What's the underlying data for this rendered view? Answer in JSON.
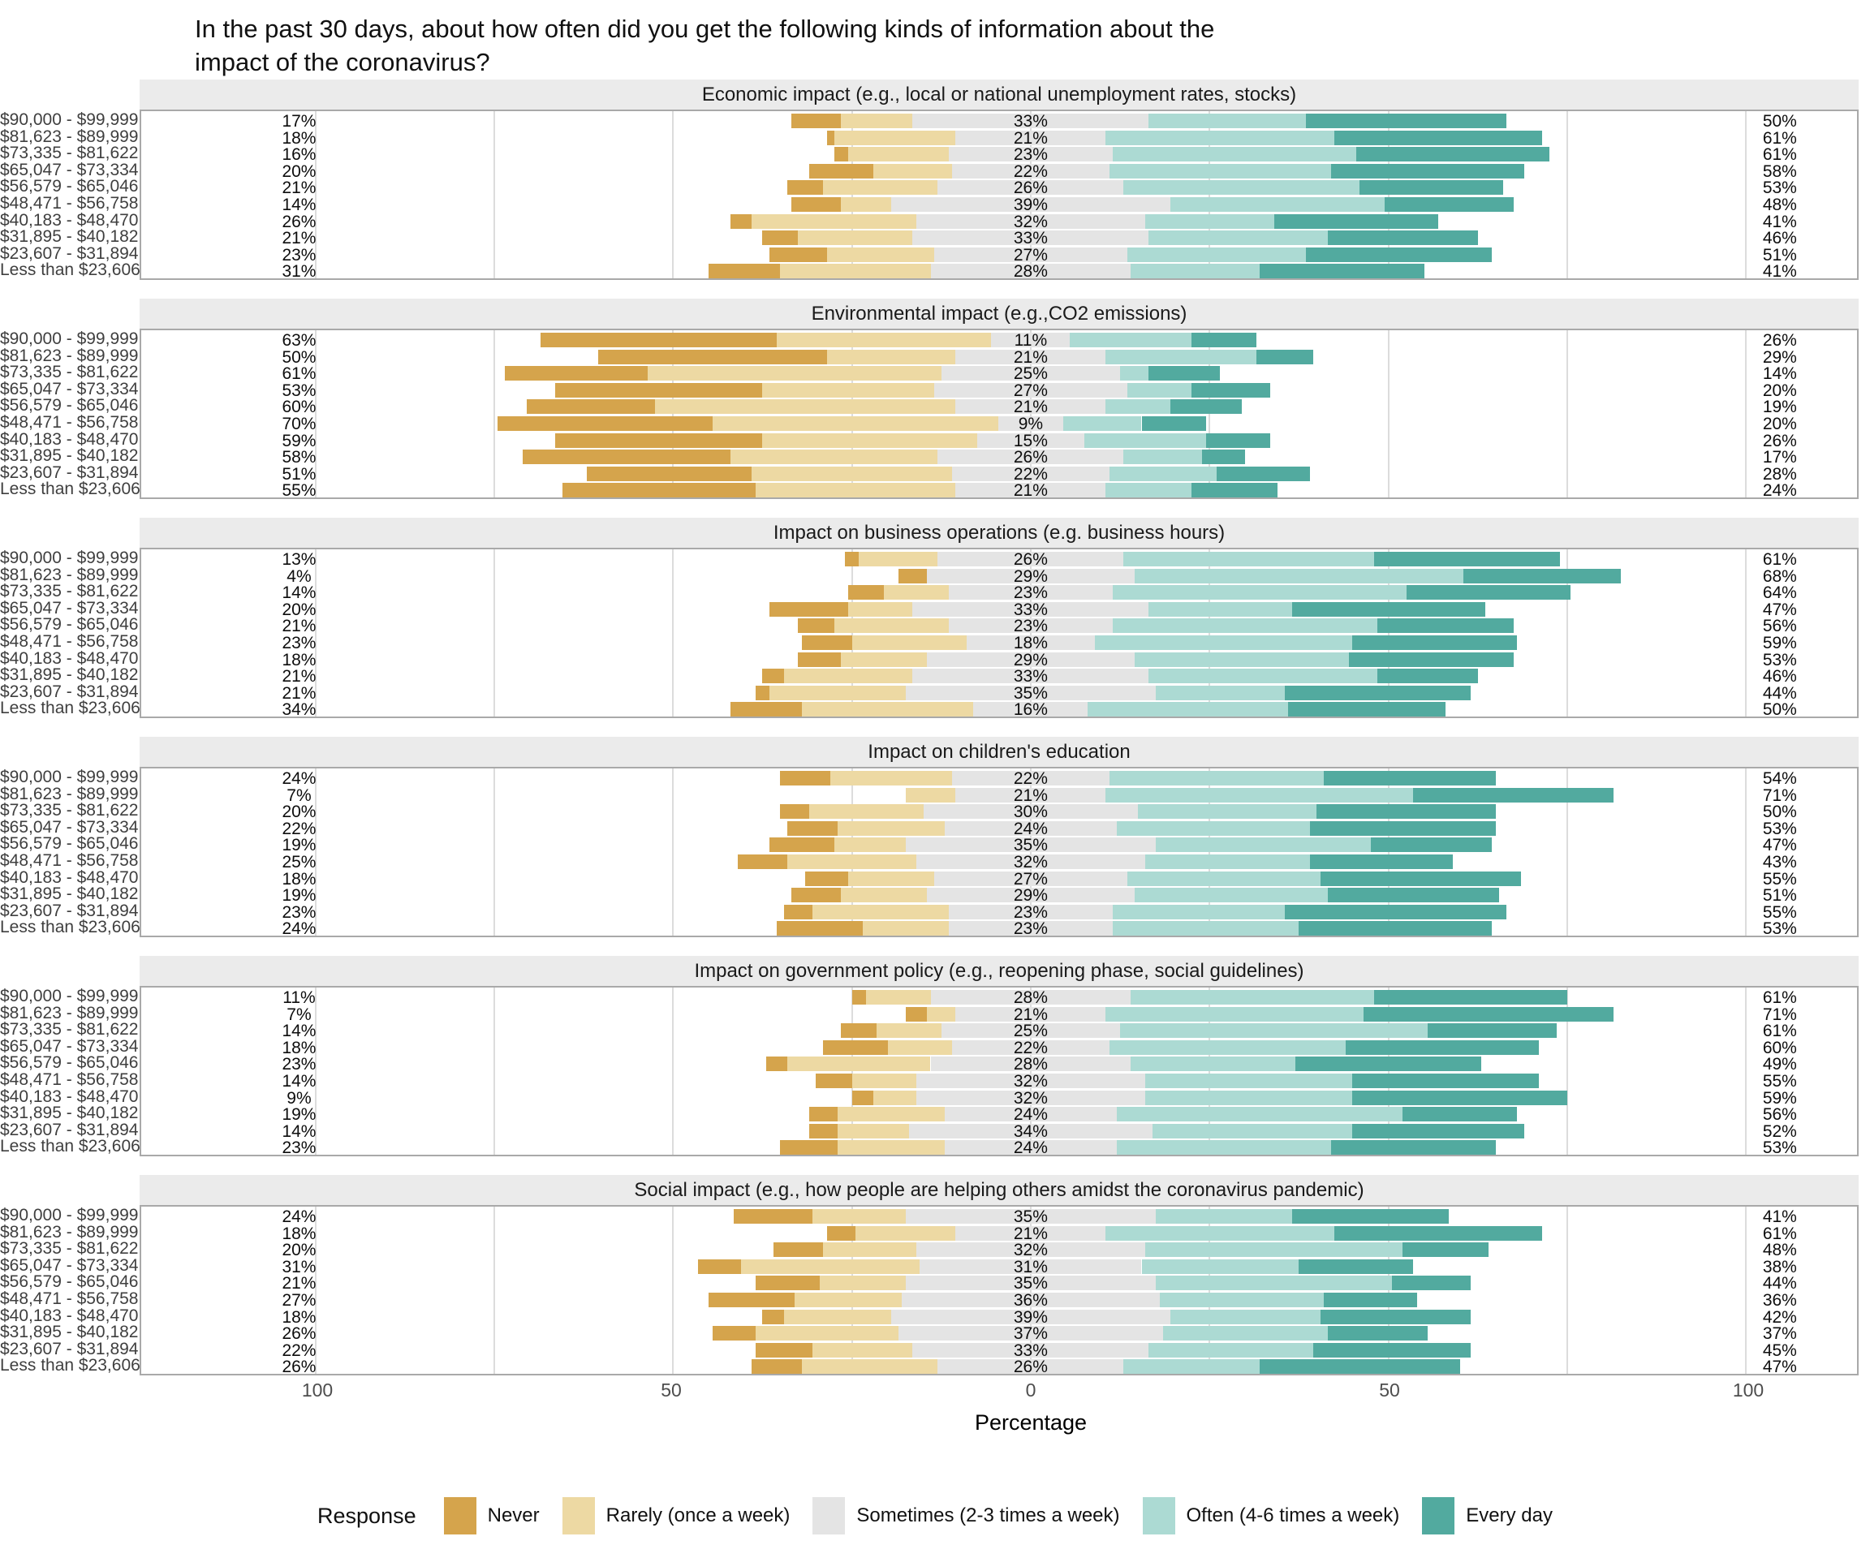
{
  "title_line1": "In the past 30 days, about how often did you get the following kinds of information about the",
  "title_line2": "impact of the coronavirus?",
  "x_axis": {
    "label": "Percentage",
    "ticks": [
      "100",
      "50",
      "0",
      "50",
      "100"
    ]
  },
  "legend": {
    "title": "Response"
  },
  "chart_data": {
    "type": "diverging-stacked-bar",
    "orientation": "horizontal",
    "x_unit": "percent of respondents",
    "x_tick_values": [
      -100,
      -50,
      0,
      50,
      100
    ],
    "grid": "on",
    "legend_position": "bottom",
    "response_levels": [
      "Never",
      "Rarely (once a week)",
      "Sometimes (2-3 times a week)",
      "Often (4-6 times a week)",
      "Every day"
    ],
    "level_keys": [
      "never",
      "rarely",
      "sometimes",
      "often",
      "every_day"
    ],
    "level_colors": {
      "never": "#D5A44C",
      "rarely": "#EDD9A3",
      "sometimes": "#E4E4E4",
      "often": "#ACDAD3",
      "every_day": "#52AA9F"
    },
    "center_rule": "Sometimes category is centered on 0; Never+Rarely extend left, Often+Every day extend right",
    "label_semantics": {
      "left": "Never + Rarely %",
      "center": "Sometimes %",
      "right": "Often + Every day %"
    },
    "categories": [
      "$90,000 - $99,999",
      "$81,623 - $89,999",
      "$73,335 - $81,622",
      "$65,047 - $73,334",
      "$56,579 - $65,046",
      "$48,471 - $56,758",
      "$40,183 - $48,470",
      "$31,895 - $40,182",
      "$23,607 - $31,894",
      "Less than $23,606"
    ],
    "row_value_order": [
      "never",
      "rarely",
      "sometimes",
      "often",
      "every_day"
    ],
    "panels": [
      {
        "title": "Economic impact (e.g., local or national unemployment rates, stocks)",
        "rows": [
          {
            "values": [
              7,
              10,
              33,
              22,
              28
            ],
            "labels": {
              "left": "17%",
              "center": "33%",
              "right": "50%"
            }
          },
          {
            "values": [
              1,
              17,
              21,
              32,
              29
            ],
            "labels": {
              "left": "18%",
              "center": "21%",
              "right": "61%"
            }
          },
          {
            "values": [
              2,
              14,
              23,
              34,
              27
            ],
            "labels": {
              "left": "16%",
              "center": "23%",
              "right": "61%"
            }
          },
          {
            "values": [
              9,
              11,
              22,
              31,
              27
            ],
            "labels": {
              "left": "20%",
              "center": "22%",
              "right": "58%"
            }
          },
          {
            "values": [
              5,
              16,
              26,
              33,
              20
            ],
            "labels": {
              "left": "21%",
              "center": "26%",
              "right": "53%"
            }
          },
          {
            "values": [
              7,
              7,
              39,
              30,
              18
            ],
            "labels": {
              "left": "14%",
              "center": "39%",
              "right": "48%"
            }
          },
          {
            "values": [
              3,
              23,
              32,
              18,
              23
            ],
            "labels": {
              "left": "26%",
              "center": "32%",
              "right": "41%"
            }
          },
          {
            "values": [
              5,
              16,
              33,
              25,
              21
            ],
            "labels": {
              "left": "21%",
              "center": "33%",
              "right": "46%"
            }
          },
          {
            "values": [
              8,
              15,
              27,
              25,
              26
            ],
            "labels": {
              "left": "23%",
              "center": "27%",
              "right": "51%"
            }
          },
          {
            "values": [
              10,
              21,
              28,
              18,
              23
            ],
            "labels": {
              "left": "31%",
              "center": "28%",
              "right": "41%"
            }
          }
        ]
      },
      {
        "title": "Environmental impact (e.g.,CO2 emissions)",
        "rows": [
          {
            "values": [
              33,
              30,
              11,
              17,
              9
            ],
            "labels": {
              "left": "63%",
              "center": "11%",
              "right": "26%"
            }
          },
          {
            "values": [
              32,
              18,
              21,
              21,
              8
            ],
            "labels": {
              "left": "50%",
              "center": "21%",
              "right": "29%"
            }
          },
          {
            "values": [
              20,
              41,
              25,
              4,
              10
            ],
            "labels": {
              "left": "61%",
              "center": "25%",
              "right": "14%"
            }
          },
          {
            "values": [
              29,
              24,
              27,
              9,
              11
            ],
            "labels": {
              "left": "53%",
              "center": "27%",
              "right": "20%"
            }
          },
          {
            "values": [
              18,
              42,
              21,
              9,
              10
            ],
            "labels": {
              "left": "60%",
              "center": "21%",
              "right": "19%"
            }
          },
          {
            "values": [
              30,
              40,
              9,
              11,
              9
            ],
            "labels": {
              "left": "70%",
              "center": "9%",
              "right": "20%"
            }
          },
          {
            "values": [
              29,
              30,
              15,
              17,
              9
            ],
            "labels": {
              "left": "59%",
              "center": "15%",
              "right": "26%"
            }
          },
          {
            "values": [
              29,
              29,
              26,
              11,
              6
            ],
            "labels": {
              "left": "58%",
              "center": "26%",
              "right": "17%"
            }
          },
          {
            "values": [
              23,
              28,
              22,
              15,
              13
            ],
            "labels": {
              "left": "51%",
              "center": "22%",
              "right": "28%"
            }
          },
          {
            "values": [
              27,
              28,
              21,
              12,
              12
            ],
            "labels": {
              "left": "55%",
              "center": "21%",
              "right": "24%"
            }
          }
        ]
      },
      {
        "title": "Impact on business operations (e.g. business hours)",
        "rows": [
          {
            "values": [
              2,
              11,
              26,
              35,
              26
            ],
            "labels": {
              "left": "13%",
              "center": "26%",
              "right": "61%"
            }
          },
          {
            "values": [
              4,
              0,
              29,
              46,
              22
            ],
            "labels": {
              "left": "4%",
              "center": "29%",
              "right": "68%"
            }
          },
          {
            "values": [
              5,
              9,
              23,
              41,
              23
            ],
            "labels": {
              "left": "14%",
              "center": "23%",
              "right": "64%"
            }
          },
          {
            "values": [
              11,
              9,
              33,
              20,
              27
            ],
            "labels": {
              "left": "20%",
              "center": "33%",
              "right": "47%"
            }
          },
          {
            "values": [
              5,
              16,
              23,
              37,
              19
            ],
            "labels": {
              "left": "21%",
              "center": "23%",
              "right": "56%"
            }
          },
          {
            "values": [
              7,
              16,
              18,
              36,
              23
            ],
            "labels": {
              "left": "23%",
              "center": "18%",
              "right": "59%"
            }
          },
          {
            "values": [
              6,
              12,
              29,
              30,
              23
            ],
            "labels": {
              "left": "18%",
              "center": "29%",
              "right": "53%"
            }
          },
          {
            "values": [
              3,
              18,
              33,
              32,
              14
            ],
            "labels": {
              "left": "21%",
              "center": "33%",
              "right": "46%"
            }
          },
          {
            "values": [
              2,
              19,
              35,
              18,
              26
            ],
            "labels": {
              "left": "21%",
              "center": "35%",
              "right": "44%"
            }
          },
          {
            "values": [
              10,
              24,
              16,
              28,
              22
            ],
            "labels": {
              "left": "34%",
              "center": "16%",
              "right": "50%"
            }
          }
        ]
      },
      {
        "title": "Impact on children's education",
        "rows": [
          {
            "values": [
              7,
              17,
              22,
              30,
              24
            ],
            "labels": {
              "left": "24%",
              "center": "22%",
              "right": "54%"
            }
          },
          {
            "values": [
              0,
              7,
              21,
              43,
              28
            ],
            "labels": {
              "left": "7%",
              "center": "21%",
              "right": "71%"
            }
          },
          {
            "values": [
              4,
              16,
              30,
              25,
              25
            ],
            "labels": {
              "left": "20%",
              "center": "30%",
              "right": "50%"
            }
          },
          {
            "values": [
              7,
              15,
              24,
              27,
              26
            ],
            "labels": {
              "left": "22%",
              "center": "24%",
              "right": "53%"
            }
          },
          {
            "values": [
              9,
              10,
              35,
              30,
              17
            ],
            "labels": {
              "left": "19%",
              "center": "35%",
              "right": "47%"
            }
          },
          {
            "values": [
              7,
              18,
              32,
              23,
              20
            ],
            "labels": {
              "left": "25%",
              "center": "32%",
              "right": "43%"
            }
          },
          {
            "values": [
              6,
              12,
              27,
              27,
              28
            ],
            "labels": {
              "left": "18%",
              "center": "27%",
              "right": "55%"
            }
          },
          {
            "values": [
              7,
              12,
              29,
              27,
              24
            ],
            "labels": {
              "left": "19%",
              "center": "29%",
              "right": "51%"
            }
          },
          {
            "values": [
              4,
              19,
              23,
              24,
              31
            ],
            "labels": {
              "left": "23%",
              "center": "23%",
              "right": "55%"
            }
          },
          {
            "values": [
              12,
              12,
              23,
              26,
              27
            ],
            "labels": {
              "left": "24%",
              "center": "23%",
              "right": "53%"
            }
          }
        ]
      },
      {
        "title": "Impact on government policy (e.g., reopening phase, social guidelines)",
        "rows": [
          {
            "values": [
              2,
              9,
              28,
              34,
              27
            ],
            "labels": {
              "left": "11%",
              "center": "28%",
              "right": "61%"
            }
          },
          {
            "values": [
              3,
              4,
              21,
              36,
              35
            ],
            "labels": {
              "left": "7%",
              "center": "21%",
              "right": "71%"
            }
          },
          {
            "values": [
              5,
              9,
              25,
              43,
              18
            ],
            "labels": {
              "left": "14%",
              "center": "25%",
              "right": "61%"
            }
          },
          {
            "values": [
              9,
              9,
              22,
              33,
              27
            ],
            "labels": {
              "left": "18%",
              "center": "22%",
              "right": "60%"
            }
          },
          {
            "values": [
              3,
              20,
              28,
              23,
              26
            ],
            "labels": {
              "left": "23%",
              "center": "28%",
              "right": "49%"
            }
          },
          {
            "values": [
              5,
              9,
              32,
              29,
              26
            ],
            "labels": {
              "left": "14%",
              "center": "32%",
              "right": "55%"
            }
          },
          {
            "values": [
              3,
              6,
              32,
              29,
              30
            ],
            "labels": {
              "left": "9%",
              "center": "32%",
              "right": "59%"
            }
          },
          {
            "values": [
              4,
              15,
              24,
              40,
              16
            ],
            "labels": {
              "left": "19%",
              "center": "24%",
              "right": "56%"
            }
          },
          {
            "values": [
              4,
              10,
              34,
              28,
              24
            ],
            "labels": {
              "left": "14%",
              "center": "34%",
              "right": "52%"
            }
          },
          {
            "values": [
              8,
              15,
              24,
              30,
              23
            ],
            "labels": {
              "left": "23%",
              "center": "24%",
              "right": "53%"
            }
          }
        ]
      },
      {
        "title": "Social impact (e.g., how people are helping others amidst the coronavirus pandemic)",
        "rows": [
          {
            "values": [
              11,
              13,
              35,
              19,
              22
            ],
            "labels": {
              "left": "24%",
              "center": "35%",
              "right": "41%"
            }
          },
          {
            "values": [
              4,
              14,
              21,
              32,
              29
            ],
            "labels": {
              "left": "18%",
              "center": "21%",
              "right": "61%"
            }
          },
          {
            "values": [
              7,
              13,
              32,
              36,
              12
            ],
            "labels": {
              "left": "20%",
              "center": "32%",
              "right": "48%"
            }
          },
          {
            "values": [
              6,
              25,
              31,
              22,
              16
            ],
            "labels": {
              "left": "31%",
              "center": "31%",
              "right": "38%"
            }
          },
          {
            "values": [
              9,
              12,
              35,
              33,
              11
            ],
            "labels": {
              "left": "21%",
              "center": "35%",
              "right": "44%"
            }
          },
          {
            "values": [
              12,
              15,
              36,
              23,
              13
            ],
            "labels": {
              "left": "27%",
              "center": "36%",
              "right": "36%"
            }
          },
          {
            "values": [
              3,
              15,
              39,
              21,
              21
            ],
            "labels": {
              "left": "18%",
              "center": "39%",
              "right": "42%"
            }
          },
          {
            "values": [
              6,
              20,
              37,
              23,
              14
            ],
            "labels": {
              "left": "26%",
              "center": "37%",
              "right": "37%"
            }
          },
          {
            "values": [
              8,
              14,
              33,
              23,
              22
            ],
            "labels": {
              "left": "22%",
              "center": "33%",
              "right": "45%"
            }
          },
          {
            "values": [
              7,
              19,
              26,
              19,
              28
            ],
            "labels": {
              "left": "26%",
              "center": "26%",
              "right": "47%"
            }
          }
        ]
      }
    ]
  }
}
